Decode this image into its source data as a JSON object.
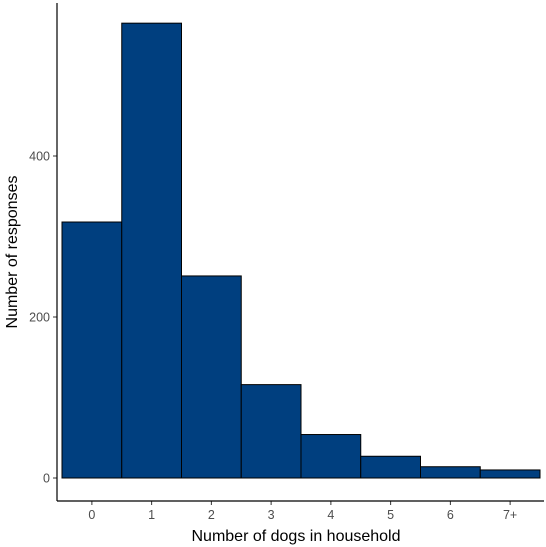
{
  "chart_data": {
    "type": "bar",
    "title": "",
    "xlabel": "Number of dogs in household",
    "ylabel": "Number of responses",
    "categories": [
      "0",
      "1",
      "2",
      "3",
      "4",
      "5",
      "6",
      "7+"
    ],
    "values": [
      318,
      565,
      251,
      116,
      54,
      27,
      14,
      10
    ],
    "ylim": [
      0,
      590
    ],
    "yticks": [
      0,
      200,
      400
    ],
    "grid": false,
    "legend": "none",
    "colors": {
      "bar_fill": "#003f7f",
      "bar_stroke": "#000000",
      "axis": "#000000",
      "tick_label": "#4d4d4d"
    }
  }
}
